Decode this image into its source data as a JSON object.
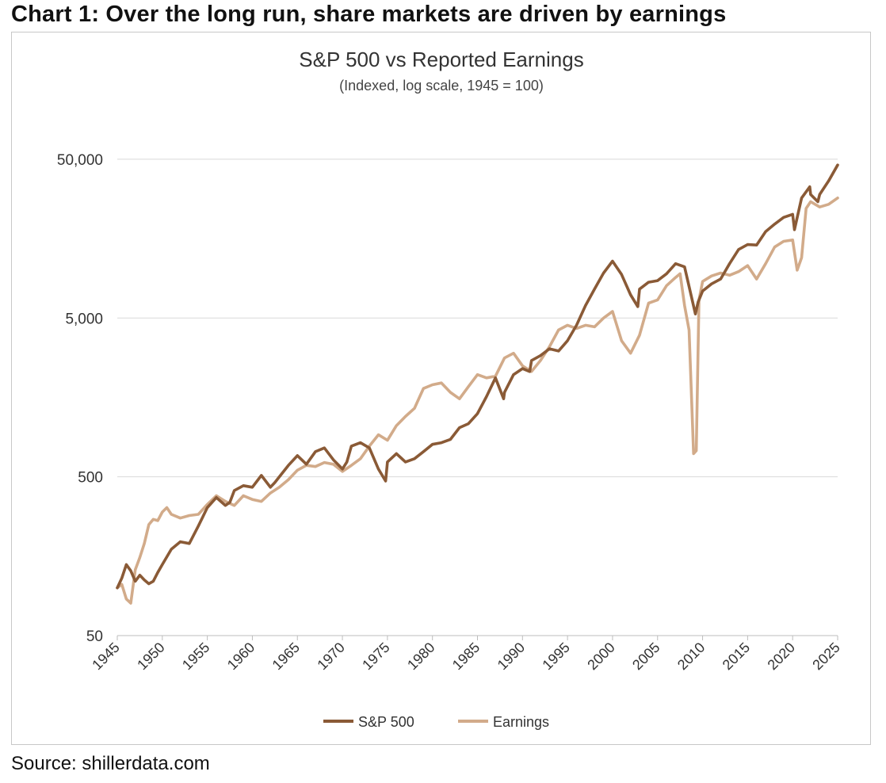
{
  "header": {
    "title": "Chart 1: Over the long run, share markets are driven by earnings"
  },
  "footer": {
    "source": "Source: shillerdata.com"
  },
  "colors": {
    "sp500": "#8a5a36",
    "earnings": "#d2ab8a",
    "grid": "#d9d9d9",
    "axis": "#bdbdbd"
  },
  "chart_data": {
    "type": "line",
    "title": "S&P 500 vs Reported Earnings",
    "subtitle": "(Indexed, log scale, 1945 = 100)",
    "xlabel": "",
    "ylabel": "",
    "yscale": "log",
    "ylim": [
      50,
      80000
    ],
    "xlim": [
      1945,
      2025
    ],
    "grid": true,
    "legend_position": "bottom-center",
    "y_ticks": [
      50,
      500,
      5000,
      50000
    ],
    "y_tick_labels": [
      "50",
      "500",
      "5,000",
      "50,000"
    ],
    "x_ticks": [
      1945,
      1950,
      1955,
      1960,
      1965,
      1970,
      1975,
      1980,
      1985,
      1990,
      1995,
      2000,
      2005,
      2010,
      2015,
      2020,
      2025
    ],
    "series": [
      {
        "name": "S&P 500",
        "x": [
          1945,
          1945.5,
          1946,
          1946.5,
          1947,
          1947.5,
          1948,
          1948.5,
          1949,
          1949.5,
          1950,
          1951,
          1952,
          1953,
          1954,
          1955,
          1956,
          1957,
          1957.5,
          1958,
          1959,
          1960,
          1961,
          1962,
          1962.5,
          1963,
          1964,
          1965,
          1966,
          1967,
          1968,
          1969,
          1970,
          1970.5,
          1971,
          1972,
          1973,
          1974,
          1974.8,
          1975,
          1976,
          1977,
          1978,
          1979,
          1980,
          1981,
          1982,
          1983,
          1984,
          1985,
          1986,
          1987,
          1987.9,
          1988,
          1989,
          1990,
          1990.8,
          1991,
          1992,
          1993,
          1994,
          1995,
          1996,
          1997,
          1998,
          1999,
          2000,
          2001,
          2002,
          2002.8,
          2003,
          2004,
          2005,
          2006,
          2007,
          2008,
          2009.2,
          2009.5,
          2010,
          2011,
          2012,
          2013,
          2014,
          2015,
          2016,
          2017,
          2018,
          2019,
          2020,
          2020.2,
          2021,
          2021.9,
          2022,
          2022.8,
          2023,
          2024,
          2025
        ],
        "values": [
          100,
          115,
          140,
          128,
          110,
          120,
          112,
          106,
          110,
          125,
          140,
          175,
          195,
          190,
          245,
          320,
          370,
          330,
          345,
          410,
          440,
          430,
          510,
          430,
          460,
          500,
          590,
          680,
          600,
          720,
          760,
          640,
          560,
          620,
          780,
          820,
          760,
          560,
          470,
          620,
          700,
          620,
          650,
          720,
          800,
          820,
          860,
          1020,
          1080,
          1250,
          1600,
          2100,
          1550,
          1700,
          2200,
          2400,
          2300,
          2700,
          2900,
          3200,
          3100,
          3600,
          4500,
          6000,
          7600,
          9600,
          11400,
          9400,
          7000,
          5900,
          7600,
          8400,
          8600,
          9500,
          11000,
          10500,
          5300,
          6300,
          7400,
          8200,
          8800,
          11000,
          13500,
          14500,
          14400,
          17500,
          19500,
          21500,
          22500,
          18000,
          28500,
          33500,
          30000,
          27000,
          30000,
          36500,
          46000
        ]
      },
      {
        "name": "Earnings",
        "x": [
          1945,
          1945.5,
          1946,
          1946.5,
          1947,
          1947.5,
          1948,
          1948.5,
          1949,
          1949.5,
          1950,
          1950.5,
          1951,
          1952,
          1953,
          1954,
          1955,
          1956,
          1957,
          1958,
          1959,
          1960,
          1961,
          1962,
          1963,
          1964,
          1965,
          1966,
          1967,
          1968,
          1969,
          1970,
          1971,
          1972,
          1973,
          1974,
          1975,
          1976,
          1977,
          1978,
          1979,
          1980,
          1981,
          1982,
          1983,
          1984,
          1985,
          1986,
          1987,
          1988,
          1989,
          1990,
          1991,
          1992,
          1993,
          1994,
          1995,
          1996,
          1997,
          1998,
          1999,
          2000,
          2001,
          2002,
          2003,
          2004,
          2005,
          2006,
          2007,
          2007.5,
          2008,
          2008.5,
          2009,
          2009.3,
          2009.6,
          2010,
          2011,
          2012,
          2013,
          2014,
          2015,
          2016,
          2017,
          2018,
          2019,
          2020,
          2020.5,
          2021,
          2021.5,
          2022,
          2023,
          2024,
          2025
        ],
        "values": [
          100,
          105,
          85,
          80,
          130,
          155,
          190,
          250,
          270,
          265,
          300,
          320,
          290,
          275,
          285,
          290,
          335,
          380,
          350,
          330,
          380,
          360,
          350,
          395,
          430,
          480,
          550,
          590,
          580,
          615,
          600,
          540,
          590,
          650,
          780,
          920,
          850,
          1050,
          1200,
          1350,
          1800,
          1900,
          1950,
          1700,
          1550,
          1850,
          2200,
          2100,
          2150,
          2800,
          3000,
          2500,
          2300,
          2700,
          3300,
          4200,
          4500,
          4300,
          4500,
          4400,
          5000,
          5500,
          3600,
          3000,
          3900,
          6200,
          6500,
          8000,
          9000,
          9500,
          6000,
          4200,
          700,
          730,
          6500,
          8500,
          9200,
          9600,
          9300,
          9800,
          10700,
          8800,
          11000,
          14000,
          15200,
          15500,
          10000,
          12000,
          24500,
          27000,
          25000,
          26000,
          28500
        ]
      }
    ]
  }
}
